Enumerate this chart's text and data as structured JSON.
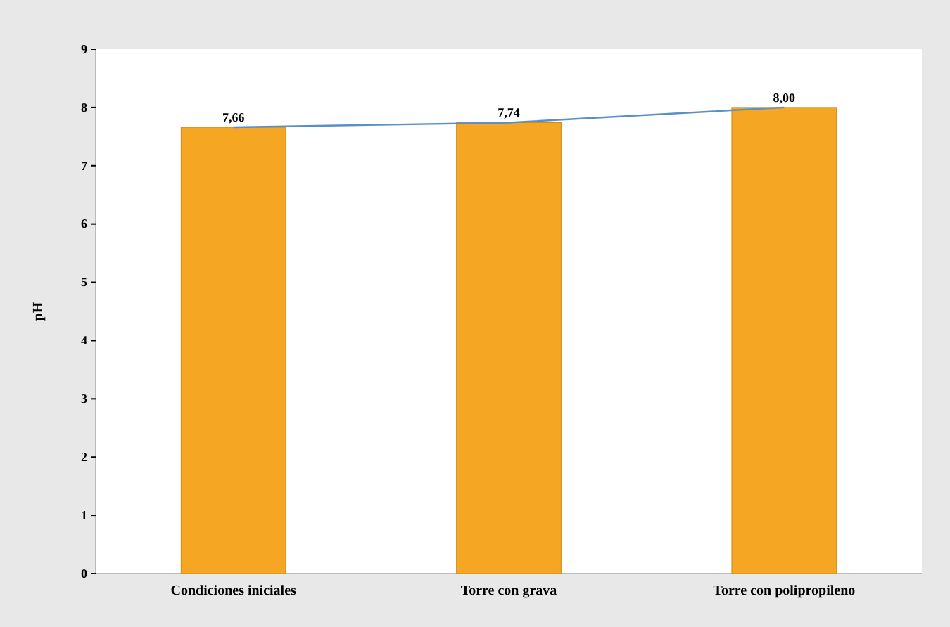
{
  "chart_data": {
    "type": "bar",
    "ylabel": "pH",
    "categories": [
      "Condiciones iniciales",
      "Torre con grava",
      "Torre con polipropileno"
    ],
    "series": [
      {
        "color": "#f5a623",
        "values": [
          7.66,
          7.74,
          8.0
        ],
        "value_labels": [
          "7,66",
          "7,74",
          "8,00"
        ]
      },
      {
        "type": "line",
        "color": "#5b8fc7",
        "values": [
          7.66,
          7.74,
          8.0
        ]
      }
    ],
    "ylim": [
      0,
      9
    ],
    "yticks": [
      0,
      1,
      2,
      3,
      4,
      5,
      6,
      7,
      8,
      9
    ],
    "grid": false,
    "marker": "none"
  }
}
